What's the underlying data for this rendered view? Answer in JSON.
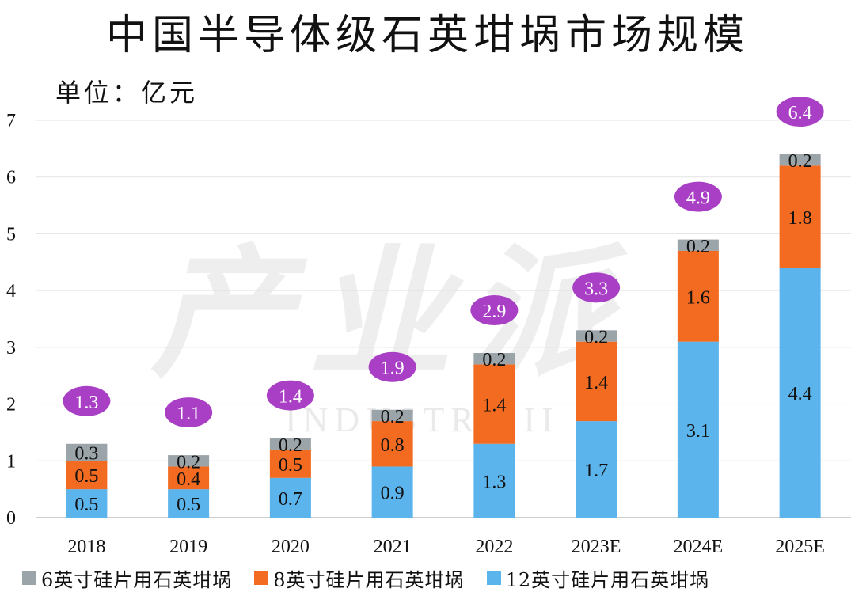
{
  "chart_data": {
    "type": "bar",
    "stacked": true,
    "title": "中国半导体级石英坩埚市场规模",
    "unit_label": "单位：亿元",
    "categories": [
      "2018",
      "2019",
      "2020",
      "2021",
      "2022",
      "2023E",
      "2024E",
      "2025E"
    ],
    "series": [
      {
        "name": "12英寸硅片用石英坩埚",
        "color": "#5BB4EC",
        "values": [
          0.5,
          0.5,
          0.7,
          0.9,
          1.3,
          1.7,
          3.1,
          4.4
        ]
      },
      {
        "name": "8英寸硅片用石英坩埚",
        "color": "#F26B21",
        "values": [
          0.5,
          0.4,
          0.5,
          0.8,
          1.4,
          1.4,
          1.6,
          1.8
        ]
      },
      {
        "name": "6英寸硅片用石英坩埚",
        "color": "#9BA4A8",
        "values": [
          0.3,
          0.2,
          0.2,
          0.2,
          0.2,
          0.2,
          0.2,
          0.2
        ]
      }
    ],
    "segment_labels": [
      [
        "0.5",
        "0.5",
        "0.7",
        "0.9",
        "1.3",
        "1.7",
        "3.1",
        "4.4"
      ],
      [
        "0.5",
        "0.4",
        "0.5",
        "0.8",
        "1.4",
        "1.4",
        "1.6",
        "1.8"
      ],
      [
        "0.3",
        "0.2",
        "0.2",
        "0.2",
        "0.2",
        "0.2",
        "0.2",
        "0.2"
      ]
    ],
    "totals": [
      1.3,
      1.1,
      1.4,
      1.9,
      2.9,
      3.3,
      4.9,
      6.4
    ],
    "total_labels": [
      "1.3",
      "1.1",
      "1.4",
      "1.9",
      "2.9",
      "3.3",
      "4.9",
      "6.4"
    ],
    "total_badge_color": "#A83FC4",
    "ylim": [
      0,
      7
    ],
    "yticks": [
      "0",
      "1",
      "2",
      "3",
      "4",
      "5",
      "6",
      "7"
    ],
    "grid": true,
    "legend_position": "bottom",
    "watermark": "产业派",
    "watermark_sub": "INDUSTRY II"
  }
}
